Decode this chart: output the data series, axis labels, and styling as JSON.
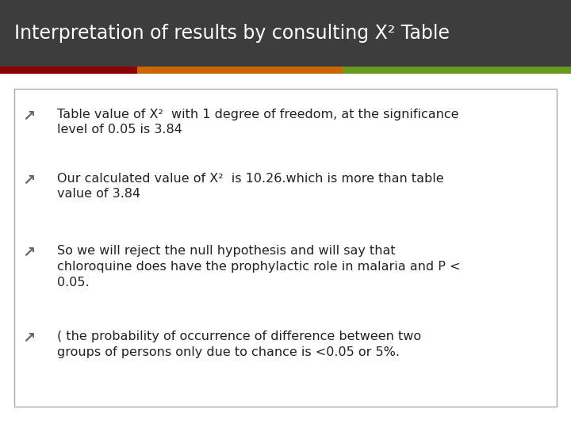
{
  "title": "Interpretation of results by consulting Χ² Table",
  "title_bg": "#3d3d3d",
  "title_color": "#ffffff",
  "bar_colors": [
    "#8b0000",
    "#cc6600",
    "#6a9a1f"
  ],
  "bg_color": "#ffffff",
  "box_bg": "#ffffff",
  "box_border": "#aaaaaa",
  "bullet_color": "#666666",
  "text_color": "#222222",
  "bullets": [
    "Table value of X²  with 1 degree of freedom, at the significance\nlevel of 0.05 is 3.84",
    "Our calculated value of X²  is 10.26.which is more than table\nvalue of 3.84",
    "So we will reject the null hypothesis and will say that\nchloroquine does have the prophylactic role in malaria and P <\n0.05.",
    "( the probability of occurrence of difference between two\ngroups of persons only due to chance is <0.05 or 5%."
  ]
}
